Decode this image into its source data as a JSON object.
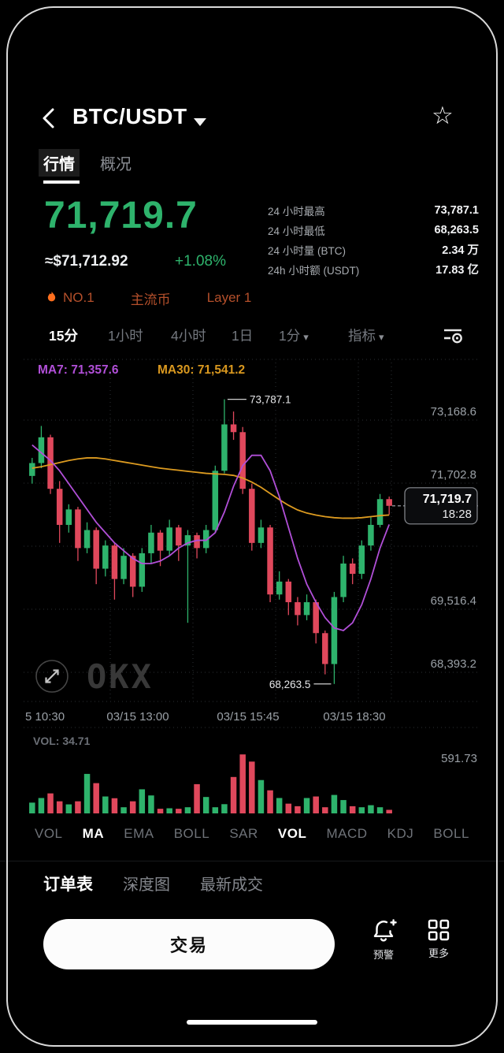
{
  "header": {
    "title": "BTC/USDT"
  },
  "tabs": [
    {
      "label": "行情",
      "active": true
    },
    {
      "label": "概况",
      "active": false
    }
  ],
  "price": {
    "last": "71,719.7",
    "usd": "≈$71,712.92",
    "change": "+1.08%"
  },
  "badges": {
    "rank": "NO.1",
    "tags": [
      "主流币",
      "Layer 1"
    ]
  },
  "stats": [
    {
      "label": "24 小时最高",
      "value": "73,787.1"
    },
    {
      "label": "24 小时最低",
      "value": "68,263.5"
    },
    {
      "label": "24 小时量 (BTC)",
      "value": "2.34 万"
    },
    {
      "label": "24h 小时额 (USDT)",
      "value": "17.83 亿"
    }
  ],
  "timeframes": [
    {
      "label": "15分",
      "active": true
    },
    {
      "label": "1小时",
      "active": false
    },
    {
      "label": "4小时",
      "active": false
    },
    {
      "label": "1日",
      "active": false
    }
  ],
  "tf_dropdown": "1分",
  "indicator_dropdown": "指标",
  "chart_data": {
    "type": "candlestick",
    "interval": "15m",
    "ylim": [
      68000,
      74500
    ],
    "legend": {
      "ma7": "MA7: 71,357.6",
      "ma30": "MA30: 71,541.2"
    },
    "y_ticks": [
      "73,168.6",
      "71,702.8",
      "",
      "69,516.4",
      "68,393.2"
    ],
    "x_ticks": [
      "5 10:30",
      "03/15 13:00",
      "03/15 15:45",
      "03/15 18:30"
    ],
    "annotations": {
      "high": {
        "label": "73,787.1",
        "candle": 22
      },
      "low": {
        "label": "68,263.5",
        "candle": 34
      }
    },
    "last": {
      "label": "71,719.7",
      "time": "18:28",
      "price": 71719.7
    },
    "colors": {
      "up": "#2eb36c",
      "down": "#e0485c",
      "ma7": "#b14fd8",
      "ma30": "#dd9b20"
    },
    "candles": [
      [
        72300,
        72650,
        72150,
        72550
      ],
      [
        72550,
        73270,
        72450,
        73050
      ],
      [
        73050,
        73100,
        71950,
        72050
      ],
      [
        72050,
        72200,
        71000,
        71350
      ],
      [
        71350,
        71750,
        71200,
        71650
      ],
      [
        71650,
        71700,
        70650,
        70900
      ],
      [
        70900,
        71400,
        70800,
        71250
      ],
      [
        71250,
        71300,
        70200,
        70500
      ],
      [
        70500,
        71050,
        70350,
        70950
      ],
      [
        70950,
        71000,
        69900,
        70300
      ],
      [
        70300,
        70900,
        70200,
        70750
      ],
      [
        70750,
        70800,
        69950,
        70150
      ],
      [
        70150,
        70900,
        70050,
        70800
      ],
      [
        70800,
        71350,
        70600,
        71200
      ],
      [
        71200,
        71250,
        70550,
        70850
      ],
      [
        70850,
        71450,
        70750,
        71300
      ],
      [
        71300,
        71350,
        70650,
        70950
      ],
      [
        70950,
        71250,
        69450,
        71150
      ],
      [
        71150,
        71200,
        70700,
        70900
      ],
      [
        70900,
        71350,
        70800,
        71250
      ],
      [
        71250,
        72500,
        71200,
        72400
      ],
      [
        72400,
        73787.1,
        72350,
        73300
      ],
      [
        73300,
        73550,
        73000,
        73150
      ],
      [
        73150,
        73250,
        71950,
        72050
      ],
      [
        72050,
        72150,
        70850,
        71000
      ],
      [
        71000,
        71450,
        70900,
        71300
      ],
      [
        71300,
        71350,
        69850,
        70000
      ],
      [
        70000,
        70450,
        69900,
        70250
      ],
      [
        70250,
        70300,
        69600,
        69850
      ],
      [
        69850,
        69950,
        69400,
        69600
      ],
      [
        69600,
        70000,
        69500,
        69850
      ],
      [
        69850,
        69900,
        69050,
        69250
      ],
      [
        69250,
        69300,
        68450,
        68650
      ],
      [
        68650,
        70050,
        68263.5,
        69950
      ],
      [
        69950,
        70750,
        69850,
        70600
      ],
      [
        70600,
        70700,
        70200,
        70400
      ],
      [
        70400,
        71050,
        70300,
        70950
      ],
      [
        70950,
        71500,
        70850,
        71350
      ],
      [
        71350,
        71950,
        71300,
        71850
      ],
      [
        71850,
        71900,
        71550,
        71719.7
      ]
    ],
    "ma7": [
      72900,
      72750,
      72600,
      72400,
      72150,
      71900,
      71650,
      71400,
      71200,
      71000,
      70850,
      70700,
      70600,
      70600,
      70650,
      70750,
      70900,
      71000,
      71050,
      71050,
      71200,
      71600,
      72100,
      72500,
      72700,
      72700,
      72400,
      71900,
      71300,
      70700,
      70200,
      69850,
      69550,
      69350,
      69300,
      69450,
      69800,
      70300,
      70900,
      71357.6
    ],
    "ma30": [
      72450,
      72480,
      72520,
      72560,
      72600,
      72630,
      72650,
      72650,
      72630,
      72600,
      72570,
      72540,
      72510,
      72480,
      72450,
      72430,
      72410,
      72390,
      72370,
      72350,
      72340,
      72330,
      72310,
      72260,
      72180,
      72080,
      71960,
      71840,
      71730,
      71640,
      71580,
      71540,
      71510,
      71490,
      71480,
      71480,
      71490,
      71510,
      71530,
      71541.2
    ],
    "volume": {
      "label": "VOL: 34.71",
      "scale_max_label": "591.73",
      "max": 591.73,
      "values": [
        105,
        150,
        195,
        118,
        88,
        118,
        385,
        295,
        165,
        148,
        60,
        118,
        235,
        175,
        45,
        50,
        45,
        60,
        285,
        160,
        60,
        90,
        355,
        575,
        505,
        325,
        225,
        150,
        95,
        70,
        150,
        165,
        60,
        180,
        130,
        70,
        60,
        80,
        60,
        34.71
      ]
    }
  },
  "indicator_tabs": [
    {
      "label": "VOL",
      "active": false
    },
    {
      "label": "MA",
      "active": true
    },
    {
      "label": "EMA",
      "active": false
    },
    {
      "label": "BOLL",
      "active": false
    },
    {
      "label": "SAR",
      "active": false
    },
    {
      "label": "VOL",
      "active": true
    },
    {
      "label": "MACD",
      "active": false
    },
    {
      "label": "KDJ",
      "active": false
    },
    {
      "label": "BOLL",
      "active": false
    }
  ],
  "order_tabs": [
    {
      "label": "订单表",
      "active": true
    },
    {
      "label": "深度图",
      "active": false
    },
    {
      "label": "最新成交",
      "active": false
    }
  ],
  "footer": {
    "trade": "交易",
    "alert": "预警",
    "more": "更多"
  }
}
